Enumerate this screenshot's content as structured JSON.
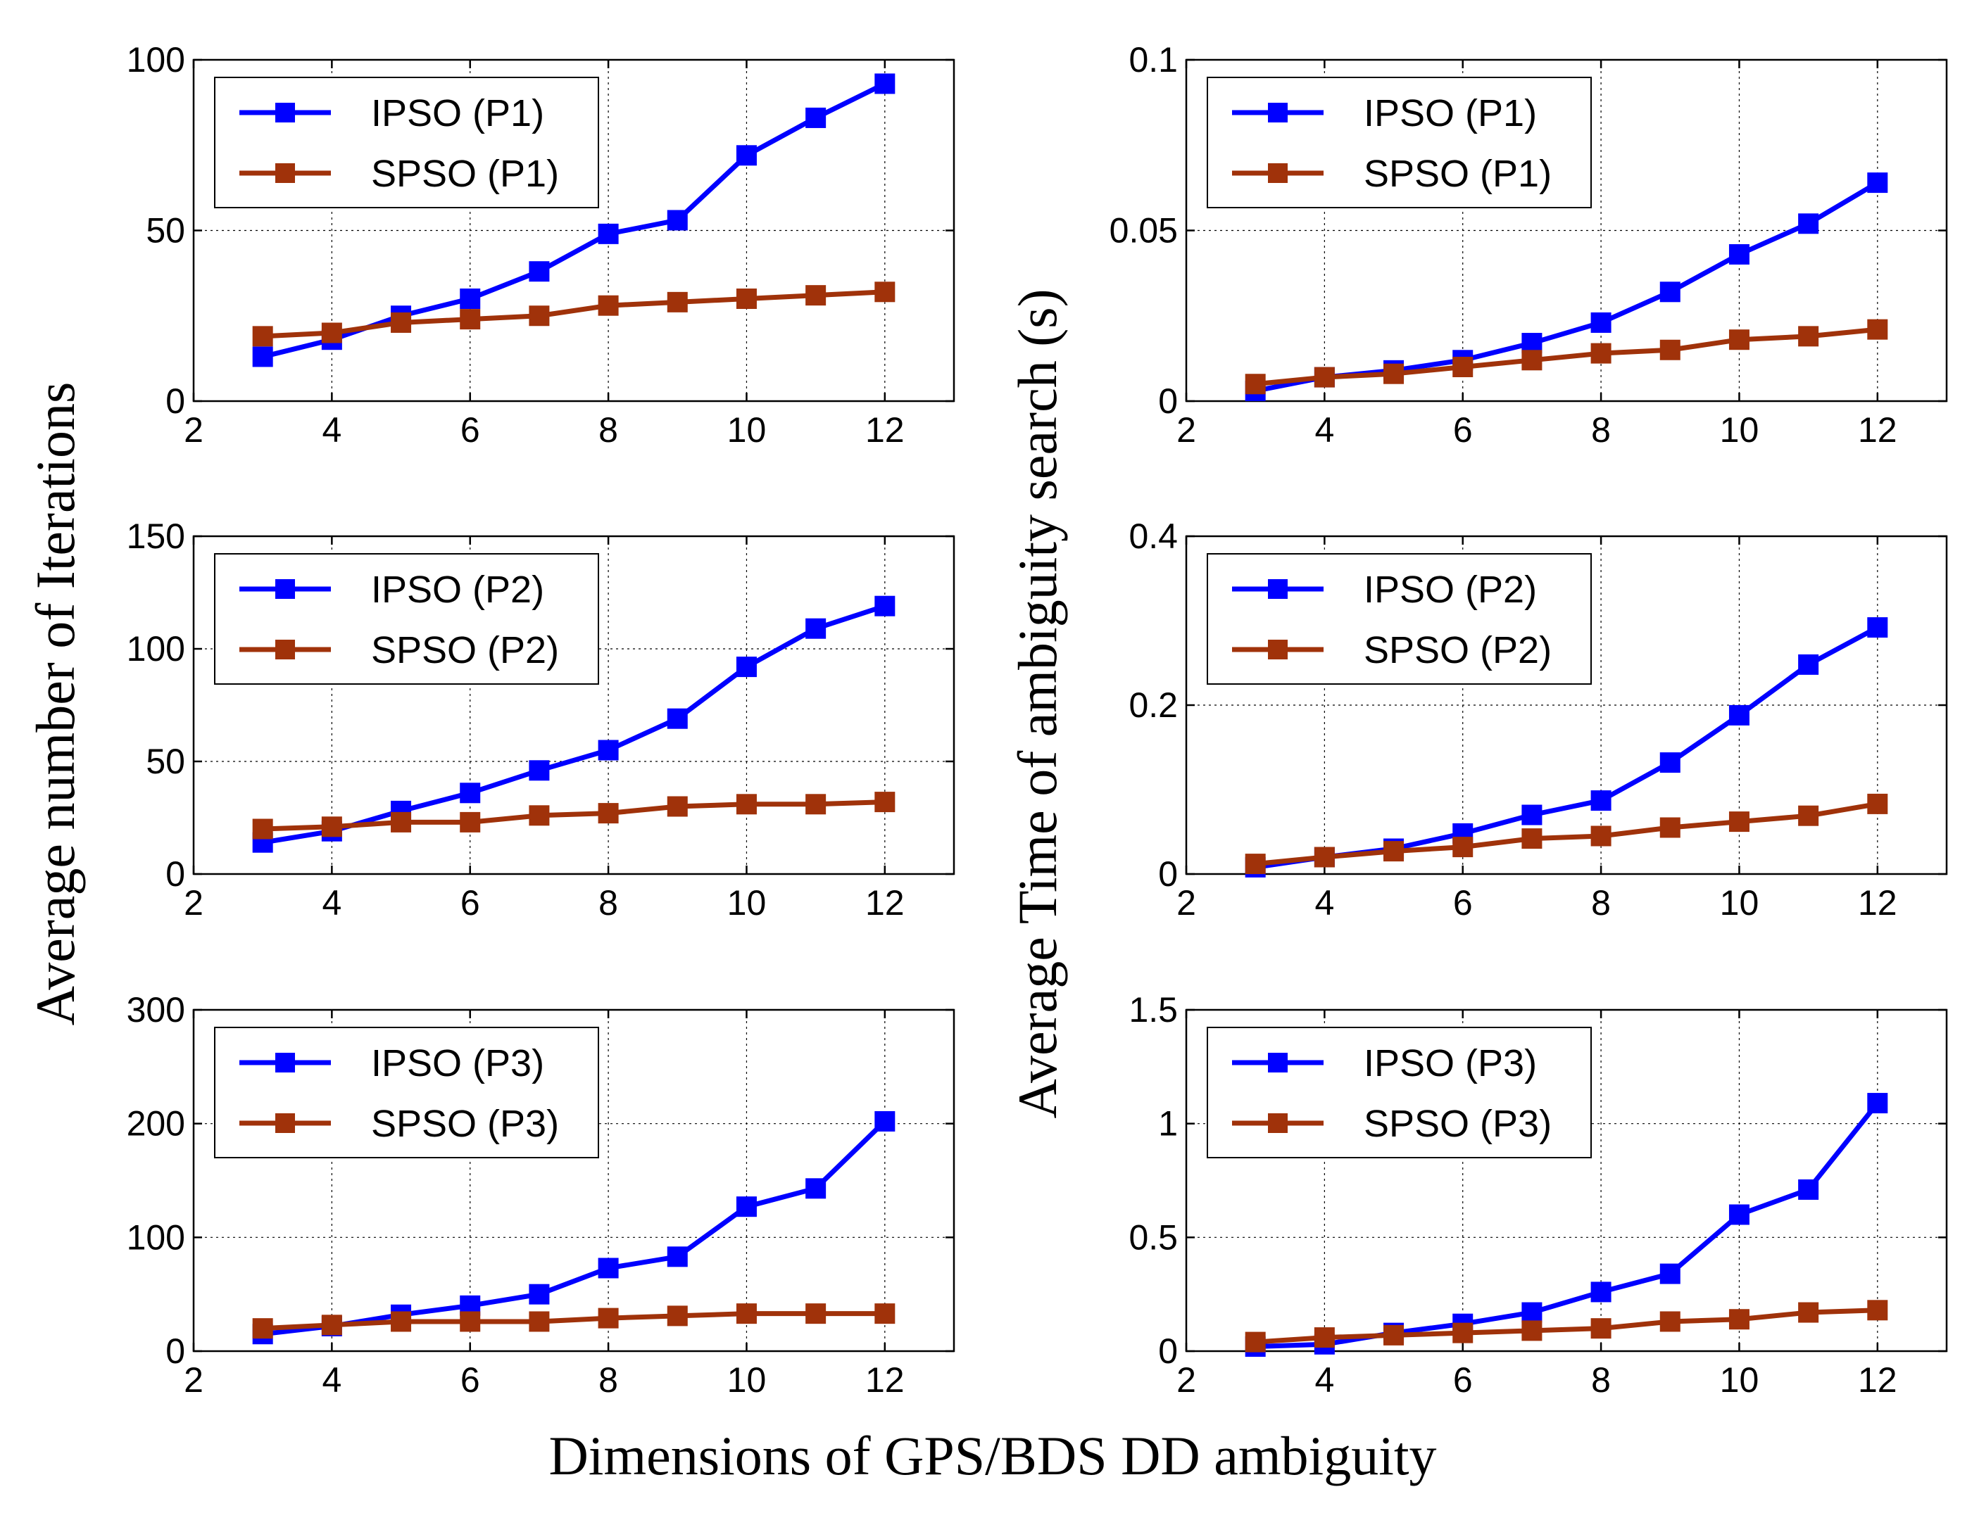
{
  "figure": {
    "xlabel": "Dimensions of GPS/BDS DD ambiguity",
    "ylabel_left": "Average number of Iterations",
    "ylabel_right": "Average Time of ambiguity search (s)"
  },
  "colors": {
    "ipso": "#0000ff",
    "spso": "#a0320a",
    "grid": "#000000",
    "axis": "#000000"
  },
  "chart_data": [
    {
      "type": "line",
      "panel": "iterations-P1",
      "xlim": [
        2,
        13
      ],
      "ylim": [
        0,
        100
      ],
      "xticks": [
        2,
        4,
        6,
        8,
        10,
        12
      ],
      "yticks": [
        0,
        50,
        100
      ],
      "ytick_labels": [
        "0",
        "50",
        "100"
      ],
      "x": [
        3,
        4,
        5,
        6,
        7,
        8,
        9,
        10,
        11,
        12
      ],
      "legend_position": "top-left",
      "series": [
        {
          "name": "IPSO (P1)",
          "values": [
            13,
            18,
            25,
            30,
            38,
            49,
            53,
            72,
            83,
            93
          ]
        },
        {
          "name": "SPSO (P1)",
          "values": [
            19,
            20,
            23,
            24,
            25,
            28,
            29,
            30,
            31,
            32
          ]
        }
      ]
    },
    {
      "type": "line",
      "panel": "time-P1",
      "xlim": [
        2,
        13
      ],
      "ylim": [
        0,
        0.1
      ],
      "xticks": [
        2,
        4,
        6,
        8,
        10,
        12
      ],
      "yticks": [
        0,
        0.05,
        0.1
      ],
      "ytick_labels": [
        "0",
        "0.05",
        "0.1"
      ],
      "x": [
        3,
        4,
        5,
        6,
        7,
        8,
        9,
        10,
        11,
        12
      ],
      "legend_position": "top-left",
      "series": [
        {
          "name": "IPSO (P1)",
          "values": [
            0.003,
            0.007,
            0.009,
            0.012,
            0.017,
            0.023,
            0.032,
            0.043,
            0.052,
            0.064
          ]
        },
        {
          "name": "SPSO (P1)",
          "values": [
            0.005,
            0.007,
            0.008,
            0.01,
            0.012,
            0.014,
            0.015,
            0.018,
            0.019,
            0.021
          ]
        }
      ]
    },
    {
      "type": "line",
      "panel": "iterations-P2",
      "xlim": [
        2,
        13
      ],
      "ylim": [
        0,
        150
      ],
      "xticks": [
        2,
        4,
        6,
        8,
        10,
        12
      ],
      "yticks": [
        0,
        50,
        100,
        150
      ],
      "ytick_labels": [
        "0",
        "50",
        "100",
        "150"
      ],
      "x": [
        3,
        4,
        5,
        6,
        7,
        8,
        9,
        10,
        11,
        12
      ],
      "legend_position": "top-left",
      "series": [
        {
          "name": "IPSO (P2)",
          "values": [
            14,
            19,
            28,
            36,
            46,
            55,
            69,
            92,
            109,
            119
          ]
        },
        {
          "name": "SPSO (P2)",
          "values": [
            20,
            21,
            23,
            23,
            26,
            27,
            30,
            31,
            31,
            32
          ]
        }
      ]
    },
    {
      "type": "line",
      "panel": "time-P2",
      "xlim": [
        2,
        13
      ],
      "ylim": [
        0,
        0.4
      ],
      "xticks": [
        2,
        4,
        6,
        8,
        10,
        12
      ],
      "yticks": [
        0,
        0.2,
        0.4
      ],
      "ytick_labels": [
        "0",
        "0.2",
        "0.4"
      ],
      "x": [
        3,
        4,
        5,
        6,
        7,
        8,
        9,
        10,
        11,
        12
      ],
      "legend_position": "top-left",
      "series": [
        {
          "name": "IPSO (P2)",
          "values": [
            0.008,
            0.02,
            0.03,
            0.048,
            0.07,
            0.087,
            0.132,
            0.188,
            0.248,
            0.292
          ]
        },
        {
          "name": "SPSO (P2)",
          "values": [
            0.012,
            0.02,
            0.027,
            0.032,
            0.042,
            0.045,
            0.055,
            0.062,
            0.069,
            0.083
          ]
        }
      ]
    },
    {
      "type": "line",
      "panel": "iterations-P3",
      "xlim": [
        2,
        13
      ],
      "ylim": [
        0,
        300
      ],
      "xticks": [
        2,
        4,
        6,
        8,
        10,
        12
      ],
      "yticks": [
        0,
        100,
        200,
        300
      ],
      "ytick_labels": [
        "0",
        "100",
        "200",
        "300"
      ],
      "x": [
        3,
        4,
        5,
        6,
        7,
        8,
        9,
        10,
        11,
        12
      ],
      "legend_position": "top-left",
      "series": [
        {
          "name": "IPSO (P3)",
          "values": [
            15,
            22,
            32,
            40,
            50,
            73,
            83,
            127,
            143,
            202
          ]
        },
        {
          "name": "SPSO (P3)",
          "values": [
            20,
            23,
            26,
            26,
            26,
            29,
            31,
            33,
            33,
            33
          ]
        }
      ]
    },
    {
      "type": "line",
      "panel": "time-P3",
      "xlim": [
        2,
        13
      ],
      "ylim": [
        0,
        1.5
      ],
      "xticks": [
        2,
        4,
        6,
        8,
        10,
        12
      ],
      "yticks": [
        0,
        0.5,
        1,
        1.5
      ],
      "ytick_labels": [
        "0",
        "0.5",
        "1",
        "1.5"
      ],
      "x": [
        3,
        4,
        5,
        6,
        7,
        8,
        9,
        10,
        11,
        12
      ],
      "legend_position": "top-left",
      "series": [
        {
          "name": "IPSO (P3)",
          "values": [
            0.02,
            0.03,
            0.08,
            0.12,
            0.17,
            0.26,
            0.34,
            0.6,
            0.71,
            1.09
          ]
        },
        {
          "name": "SPSO (P3)",
          "values": [
            0.04,
            0.06,
            0.07,
            0.08,
            0.09,
            0.1,
            0.13,
            0.14,
            0.17,
            0.18
          ]
        }
      ]
    }
  ]
}
